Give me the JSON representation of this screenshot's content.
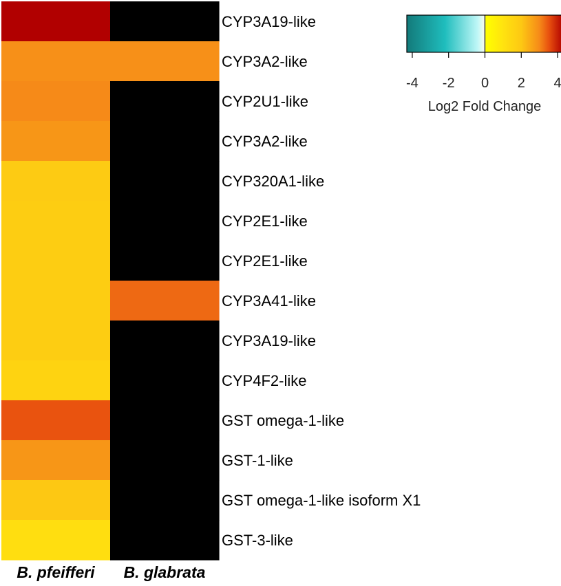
{
  "chart_data": {
    "type": "heatmap",
    "columns": [
      "B. pfeifferi",
      "B. glabrata"
    ],
    "rows": [
      "CYP3A19-like",
      "CYP3A2-like",
      "CYP2U1-like",
      "CYP3A2-like",
      "CYP320A1-like",
      "CYP2E1-like",
      "CYP2E1-like",
      "CYP3A41-like",
      "CYP3A19-like",
      "CYP4F2-like",
      "GST omega-1-like",
      "GST-1-like",
      "GST omega-1-like isoform X1",
      "GST-3-like"
    ],
    "values": [
      [
        4.3,
        null
      ],
      [
        2.9,
        2.9
      ],
      [
        3.0,
        null
      ],
      [
        2.8,
        null
      ],
      [
        1.9,
        null
      ],
      [
        1.8,
        null
      ],
      [
        1.8,
        null
      ],
      [
        1.8,
        3.3
      ],
      [
        1.8,
        null
      ],
      [
        1.6,
        null
      ],
      [
        3.5,
        null
      ],
      [
        2.8,
        null
      ],
      [
        2.0,
        null
      ],
      [
        1.2,
        null
      ]
    ],
    "missing_color": "#000000",
    "color_scale": {
      "min": -4.3,
      "max": 4.3,
      "stops": [
        {
          "value": -4.3,
          "color": "#137a7a"
        },
        {
          "value": -2.2,
          "color": "#1fbdbd"
        },
        {
          "value": -0.4,
          "color": "#bff7f7"
        },
        {
          "value": 0,
          "color": "#fbfdf0"
        },
        {
          "value": 0.05,
          "color": "#ffff00"
        },
        {
          "value": 1.0,
          "color": "#ffe30f"
        },
        {
          "value": 2.0,
          "color": "#fdc813"
        },
        {
          "value": 3.0,
          "color": "#f68a18"
        },
        {
          "value": 3.5,
          "color": "#e9530f"
        },
        {
          "value": 4.3,
          "color": "#b10000"
        }
      ]
    },
    "legend": {
      "title": "Log2 Fold Change",
      "ticks": [
        -4,
        -2,
        0,
        2,
        4
      ],
      "placement": "top-right"
    }
  }
}
